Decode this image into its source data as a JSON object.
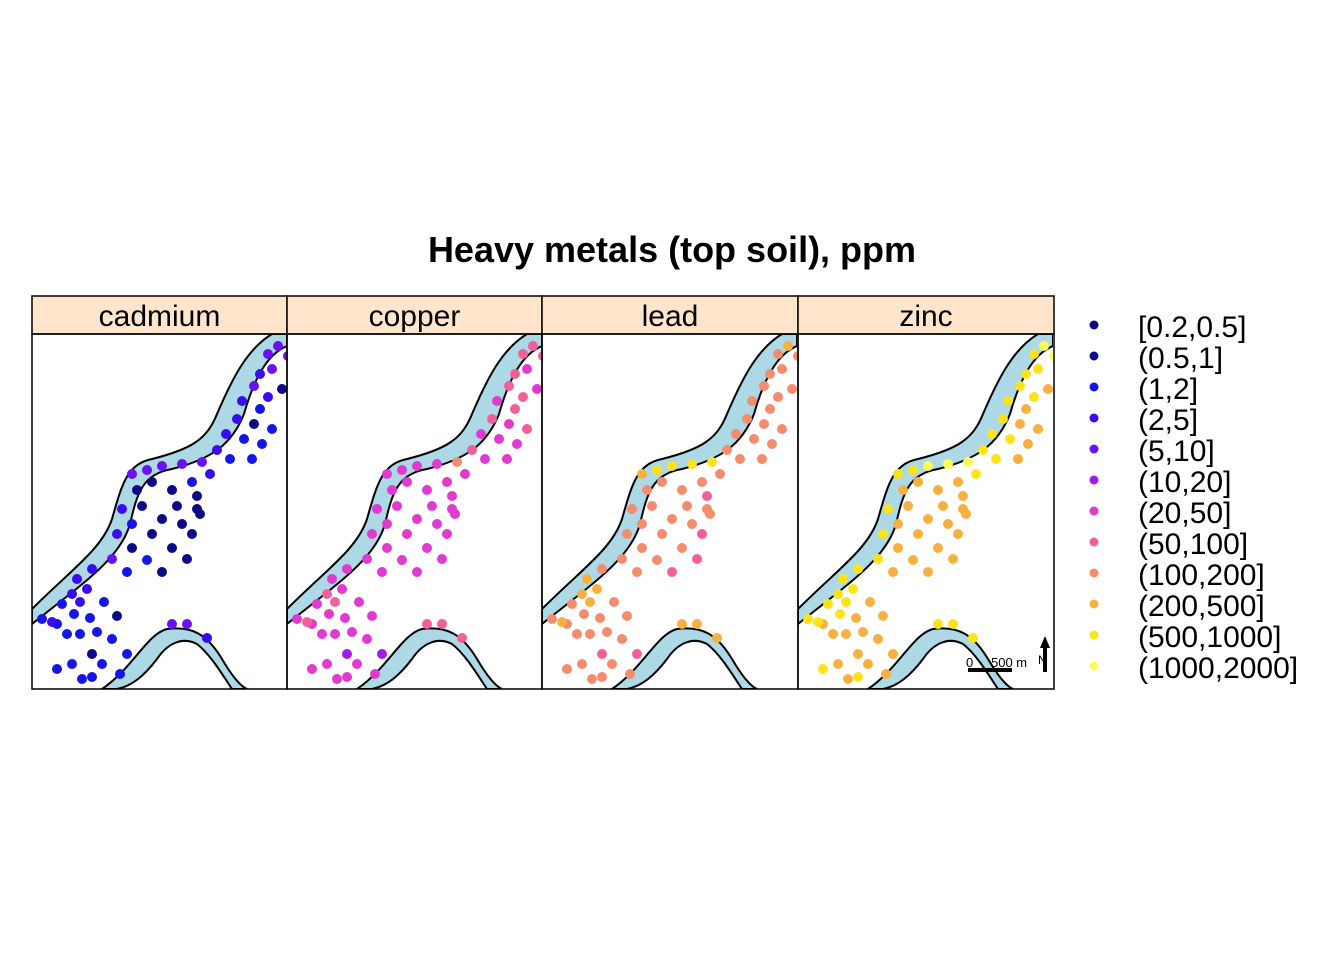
{
  "title": "Heavy metals (top soil), ppm",
  "panels": [
    {
      "label": "cadmium"
    },
    {
      "label": "copper"
    },
    {
      "label": "lead"
    },
    {
      "label": "zinc"
    }
  ],
  "legend": {
    "classes": [
      {
        "label": "[0.2,0.5]",
        "color": "#0d0887"
      },
      {
        "label": "(0.5,1]",
        "color": "#0e0a8f"
      },
      {
        "label": "(1,2]",
        "color": "#1515e8"
      },
      {
        "label": "(2,5]",
        "color": "#3a0bf0"
      },
      {
        "label": "(5,10]",
        "color": "#6a10f2"
      },
      {
        "label": "(10,20]",
        "color": "#a21be8"
      },
      {
        "label": "(20,50]",
        "color": "#e03ad0"
      },
      {
        "label": "(50,100]",
        "color": "#f2609a"
      },
      {
        "label": "(100,200]",
        "color": "#f68c6e"
      },
      {
        "label": "(200,500]",
        "color": "#fab040"
      },
      {
        "label": "(500,1000]",
        "color": "#fde21c"
      },
      {
        "label": "(1000,2000]",
        "color": "#fdfd5a"
      }
    ]
  },
  "scalebar": {
    "start_label": "0",
    "end_label": "500 m"
  },
  "north_arrow": {
    "label": "N"
  },
  "colors": {
    "river": "#add8e6",
    "strip": "#ffe5cc",
    "frame": "#000000"
  }
}
